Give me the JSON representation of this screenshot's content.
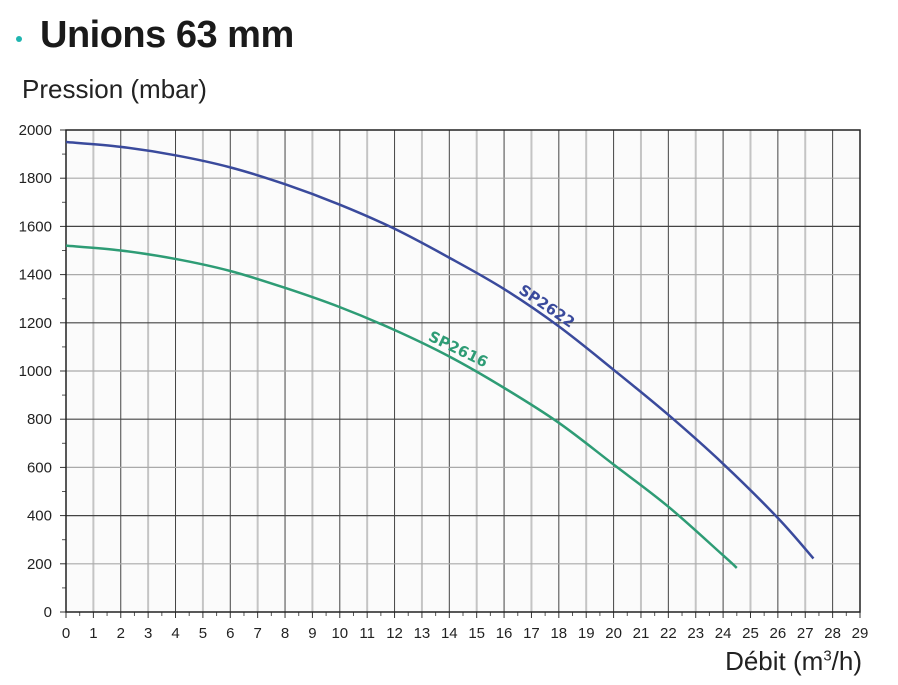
{
  "chart_data": {
    "type": "line",
    "title": "Unions 63 mm",
    "ylabel": "Pression (mbar)",
    "xlabel_main": "Débit (m",
    "xlabel_sup": "3",
    "xlabel_end": "/h)",
    "xlim": [
      0,
      29
    ],
    "ylim": [
      0,
      2000
    ],
    "x_ticks": [
      0,
      1,
      2,
      3,
      4,
      5,
      6,
      7,
      8,
      9,
      10,
      11,
      12,
      13,
      14,
      15,
      16,
      17,
      18,
      19,
      20,
      21,
      22,
      23,
      24,
      25,
      26,
      27,
      28,
      29
    ],
    "y_ticks": [
      0,
      200,
      400,
      600,
      800,
      1000,
      1200,
      1400,
      1600,
      1800,
      2000
    ],
    "grid": true,
    "series": [
      {
        "name": "SP2622",
        "color": "#3a4a9c",
        "x": [
          0,
          2,
          4,
          6,
          8,
          10,
          12,
          14,
          16,
          18,
          20,
          22,
          24,
          26,
          27.3
        ],
        "y": [
          1950,
          1930,
          1895,
          1845,
          1775,
          1690,
          1590,
          1470,
          1340,
          1185,
          1005,
          818,
          615,
          390,
          222
        ]
      },
      {
        "name": "SP2616",
        "color": "#2e9c75",
        "x": [
          0,
          2,
          4,
          6,
          8,
          10,
          12,
          14,
          16,
          18,
          20,
          22,
          24,
          24.5
        ],
        "y": [
          1520,
          1500,
          1465,
          1415,
          1345,
          1265,
          1170,
          1060,
          930,
          785,
          612,
          437,
          235,
          183
        ]
      }
    ]
  }
}
